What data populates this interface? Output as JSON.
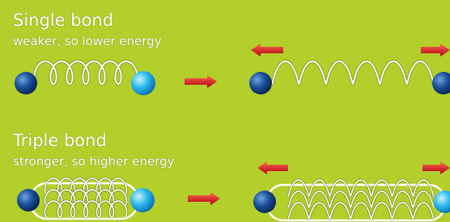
{
  "single": {
    "title": "Single bond",
    "subtitle": "weaker, so lower energy"
  },
  "triple": {
    "title": "Triple bond",
    "subtitle": "stronger, so higher energy"
  }
}
